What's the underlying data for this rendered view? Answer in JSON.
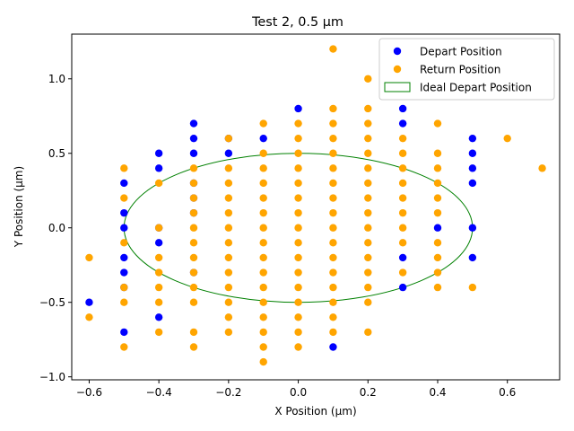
{
  "chart_data": {
    "type": "scatter",
    "title": "Test 2, 0.5 µm",
    "xlabel": "X Position (µm)",
    "ylabel": "Y Position (µm)",
    "xlim": [
      -0.65,
      0.75
    ],
    "ylim": [
      -1.02,
      1.3
    ],
    "xticks": [
      -0.6,
      -0.4,
      -0.2,
      0.0,
      0.2,
      0.4,
      0.6
    ],
    "xtick_labels": [
      "−0.6",
      "−0.4",
      "−0.2",
      "0.0",
      "0.2",
      "0.4",
      "0.6"
    ],
    "yticks": [
      -1.0,
      -0.5,
      0.0,
      0.5,
      1.0
    ],
    "ytick_labels": [
      "−1.0",
      "−0.5",
      "0.0",
      "0.5",
      "1.0"
    ],
    "grid": false,
    "legend_position": "top-right",
    "series": [
      {
        "name": "Depart Position",
        "color": "#0000ff",
        "marker": "circle",
        "points": [
          [
            -0.6,
            -0.5
          ],
          [
            -0.5,
            0.3
          ],
          [
            -0.5,
            0.1
          ],
          [
            -0.5,
            0.0
          ],
          [
            -0.5,
            -0.2
          ],
          [
            -0.5,
            -0.3
          ],
          [
            -0.5,
            -0.4
          ],
          [
            -0.5,
            -0.7
          ],
          [
            -0.4,
            0.5
          ],
          [
            -0.4,
            0.4
          ],
          [
            -0.4,
            0.0
          ],
          [
            -0.4,
            -0.1
          ],
          [
            -0.4,
            -0.6
          ],
          [
            -0.3,
            0.7
          ],
          [
            -0.3,
            0.6
          ],
          [
            -0.3,
            0.5
          ],
          [
            -0.3,
            0.3
          ],
          [
            -0.3,
            0.2
          ],
          [
            -0.3,
            0.1
          ],
          [
            -0.3,
            -0.3
          ],
          [
            -0.2,
            0.6
          ],
          [
            -0.2,
            0.5
          ],
          [
            -0.1,
            0.6
          ],
          [
            0.0,
            0.8
          ],
          [
            0.1,
            -0.8
          ],
          [
            0.3,
            0.8
          ],
          [
            0.3,
            0.7
          ],
          [
            0.3,
            -0.2
          ],
          [
            0.3,
            -0.4
          ],
          [
            0.4,
            0.0
          ],
          [
            0.5,
            0.6
          ],
          [
            0.5,
            0.5
          ],
          [
            0.5,
            0.4
          ],
          [
            0.5,
            0.3
          ],
          [
            0.5,
            0.0
          ],
          [
            0.5,
            -0.2
          ]
        ]
      },
      {
        "name": "Return Position",
        "color": "#ffa500",
        "marker": "circle",
        "points": [
          [
            -0.6,
            -0.2
          ],
          [
            -0.6,
            -0.6
          ],
          [
            -0.5,
            0.4
          ],
          [
            -0.5,
            0.2
          ],
          [
            -0.5,
            -0.1
          ],
          [
            -0.5,
            -0.4
          ],
          [
            -0.5,
            -0.5
          ],
          [
            -0.5,
            -0.8
          ],
          [
            -0.4,
            0.3
          ],
          [
            -0.4,
            0.0
          ],
          [
            -0.4,
            -0.2
          ],
          [
            -0.4,
            -0.3
          ],
          [
            -0.4,
            -0.4
          ],
          [
            -0.4,
            -0.5
          ],
          [
            -0.4,
            -0.7
          ],
          [
            -0.3,
            0.4
          ],
          [
            -0.3,
            0.3
          ],
          [
            -0.3,
            0.2
          ],
          [
            -0.3,
            0.1
          ],
          [
            -0.3,
            0.0
          ],
          [
            -0.3,
            -0.1
          ],
          [
            -0.3,
            -0.2
          ],
          [
            -0.3,
            -0.3
          ],
          [
            -0.3,
            -0.4
          ],
          [
            -0.3,
            -0.5
          ],
          [
            -0.3,
            -0.7
          ],
          [
            -0.3,
            -0.8
          ],
          [
            -0.2,
            0.6
          ],
          [
            -0.2,
            0.4
          ],
          [
            -0.2,
            0.3
          ],
          [
            -0.2,
            0.2
          ],
          [
            -0.2,
            0.1
          ],
          [
            -0.2,
            0.0
          ],
          [
            -0.2,
            -0.1
          ],
          [
            -0.2,
            -0.2
          ],
          [
            -0.2,
            -0.3
          ],
          [
            -0.2,
            -0.4
          ],
          [
            -0.2,
            -0.5
          ],
          [
            -0.2,
            -0.6
          ],
          [
            -0.2,
            -0.7
          ],
          [
            -0.1,
            0.7
          ],
          [
            -0.1,
            0.5
          ],
          [
            -0.1,
            0.4
          ],
          [
            -0.1,
            0.3
          ],
          [
            -0.1,
            0.2
          ],
          [
            -0.1,
            0.1
          ],
          [
            -0.1,
            0.0
          ],
          [
            -0.1,
            -0.1
          ],
          [
            -0.1,
            -0.2
          ],
          [
            -0.1,
            -0.3
          ],
          [
            -0.1,
            -0.4
          ],
          [
            -0.1,
            -0.5
          ],
          [
            -0.1,
            -0.6
          ],
          [
            -0.1,
            -0.7
          ],
          [
            -0.1,
            -0.8
          ],
          [
            -0.1,
            -0.9
          ],
          [
            0.0,
            0.7
          ],
          [
            0.0,
            0.6
          ],
          [
            0.0,
            0.5
          ],
          [
            0.0,
            0.4
          ],
          [
            0.0,
            0.3
          ],
          [
            0.0,
            0.2
          ],
          [
            0.0,
            0.1
          ],
          [
            0.0,
            0.0
          ],
          [
            0.0,
            -0.1
          ],
          [
            0.0,
            -0.2
          ],
          [
            0.0,
            -0.3
          ],
          [
            0.0,
            -0.4
          ],
          [
            0.0,
            -0.5
          ],
          [
            0.0,
            -0.6
          ],
          [
            0.0,
            -0.7
          ],
          [
            0.0,
            -0.8
          ],
          [
            0.1,
            1.2
          ],
          [
            0.1,
            0.8
          ],
          [
            0.1,
            0.7
          ],
          [
            0.1,
            0.6
          ],
          [
            0.1,
            0.5
          ],
          [
            0.1,
            0.4
          ],
          [
            0.1,
            0.3
          ],
          [
            0.1,
            0.2
          ],
          [
            0.1,
            0.1
          ],
          [
            0.1,
            0.0
          ],
          [
            0.1,
            -0.1
          ],
          [
            0.1,
            -0.2
          ],
          [
            0.1,
            -0.3
          ],
          [
            0.1,
            -0.4
          ],
          [
            0.1,
            -0.5
          ],
          [
            0.1,
            -0.6
          ],
          [
            0.1,
            -0.7
          ],
          [
            0.2,
            1.0
          ],
          [
            0.2,
            0.8
          ],
          [
            0.2,
            0.7
          ],
          [
            0.2,
            0.6
          ],
          [
            0.2,
            0.5
          ],
          [
            0.2,
            0.4
          ],
          [
            0.2,
            0.3
          ],
          [
            0.2,
            0.2
          ],
          [
            0.2,
            0.1
          ],
          [
            0.2,
            0.0
          ],
          [
            0.2,
            -0.1
          ],
          [
            0.2,
            -0.2
          ],
          [
            0.2,
            -0.3
          ],
          [
            0.2,
            -0.4
          ],
          [
            0.2,
            -0.5
          ],
          [
            0.2,
            -0.7
          ],
          [
            0.3,
            0.6
          ],
          [
            0.3,
            0.5
          ],
          [
            0.3,
            0.4
          ],
          [
            0.3,
            0.3
          ],
          [
            0.3,
            0.2
          ],
          [
            0.3,
            0.1
          ],
          [
            0.3,
            0.0
          ],
          [
            0.3,
            -0.1
          ],
          [
            0.3,
            -0.3
          ],
          [
            0.4,
            0.7
          ],
          [
            0.4,
            0.5
          ],
          [
            0.4,
            0.4
          ],
          [
            0.4,
            0.3
          ],
          [
            0.4,
            0.2
          ],
          [
            0.4,
            0.1
          ],
          [
            0.4,
            -0.1
          ],
          [
            0.4,
            -0.2
          ],
          [
            0.4,
            -0.3
          ],
          [
            0.4,
            -0.4
          ],
          [
            0.5,
            -0.4
          ],
          [
            0.6,
            0.6
          ],
          [
            0.7,
            0.4
          ]
        ]
      }
    ],
    "ellipse": {
      "name": "Ideal Depart Position",
      "color": "#008000",
      "center": [
        0.0,
        0.0
      ],
      "radius_x": 0.5,
      "radius_y": 0.5
    },
    "legend": [
      {
        "label": "Depart Position",
        "swatch": "dot",
        "color": "#0000ff"
      },
      {
        "label": "Return Position",
        "swatch": "dot",
        "color": "#ffa500"
      },
      {
        "label": "Ideal Depart Position",
        "swatch": "rect",
        "color": "#008000"
      }
    ]
  }
}
